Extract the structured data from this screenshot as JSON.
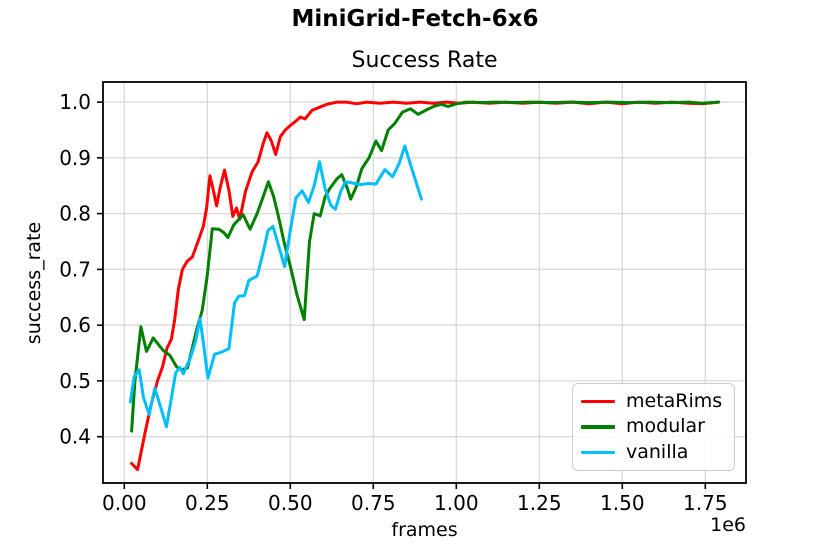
{
  "figure": {
    "suptitle": "MiniGrid-Fetch-6x6",
    "axes_title": "Success Rate"
  },
  "chart_data": {
    "type": "line",
    "title": "Success Rate",
    "suptitle": "MiniGrid-Fetch-6x6",
    "xlabel": "frames",
    "ylabel": "success_rate",
    "x_offset_label": "1e6",
    "x_units": "frames (1e6)",
    "grid": true,
    "legend_position": "lower right",
    "xlim": [
      -0.0641,
      1.8726
    ],
    "ylim": [
      0.317,
      1.036
    ],
    "xticks": {
      "values": [
        0,
        0.25,
        0.5,
        0.75,
        1.0,
        1.25,
        1.5,
        1.75
      ],
      "labels": [
        "0.00",
        "0.25",
        "0.50",
        "0.75",
        "1.00",
        "1.25",
        "1.50",
        "1.75"
      ]
    },
    "yticks": {
      "values": [
        0.4,
        0.5,
        0.6,
        0.7,
        0.8,
        0.9,
        1.0
      ],
      "labels": [
        "0.4",
        "0.5",
        "0.6",
        "0.7",
        "0.8",
        "0.9",
        "1.0"
      ]
    },
    "grid_color": "#d9d9d9",
    "spine_color": "#000000",
    "series": [
      {
        "name": "metaRims",
        "color": "#ff0000",
        "points": [
          [
            0.022,
            0.352
          ],
          [
            0.04,
            0.341
          ],
          [
            0.062,
            0.406
          ],
          [
            0.08,
            0.455
          ],
          [
            0.1,
            0.5
          ],
          [
            0.115,
            0.525
          ],
          [
            0.128,
            0.558
          ],
          [
            0.142,
            0.575
          ],
          [
            0.152,
            0.61
          ],
          [
            0.163,
            0.665
          ],
          [
            0.175,
            0.7
          ],
          [
            0.19,
            0.715
          ],
          [
            0.205,
            0.722
          ],
          [
            0.222,
            0.75
          ],
          [
            0.238,
            0.777
          ],
          [
            0.248,
            0.81
          ],
          [
            0.258,
            0.868
          ],
          [
            0.268,
            0.842
          ],
          [
            0.278,
            0.814
          ],
          [
            0.29,
            0.85
          ],
          [
            0.302,
            0.878
          ],
          [
            0.315,
            0.842
          ],
          [
            0.327,
            0.795
          ],
          [
            0.338,
            0.81
          ],
          [
            0.348,
            0.79
          ],
          [
            0.365,
            0.84
          ],
          [
            0.385,
            0.875
          ],
          [
            0.403,
            0.893
          ],
          [
            0.418,
            0.925
          ],
          [
            0.43,
            0.945
          ],
          [
            0.443,
            0.93
          ],
          [
            0.456,
            0.906
          ],
          [
            0.47,
            0.938
          ],
          [
            0.485,
            0.95
          ],
          [
            0.5,
            0.958
          ],
          [
            0.515,
            0.965
          ],
          [
            0.53,
            0.973
          ],
          [
            0.545,
            0.97
          ],
          [
            0.565,
            0.985
          ],
          [
            0.585,
            0.99
          ],
          [
            0.61,
            0.996
          ],
          [
            0.64,
            1.0
          ],
          [
            0.67,
            1.0
          ],
          [
            0.7,
            0.997
          ],
          [
            0.73,
            1.0
          ],
          [
            0.77,
            0.998
          ],
          [
            0.81,
            1.0
          ],
          [
            0.85,
            0.998
          ],
          [
            0.89,
            1.0
          ],
          [
            0.93,
            0.998
          ],
          [
            0.97,
            1.0
          ],
          [
            1.01,
            0.998
          ],
          [
            1.05,
            1.0
          ],
          [
            1.1,
            0.998
          ],
          [
            1.15,
            1.0
          ],
          [
            1.2,
            0.998
          ],
          [
            1.25,
            1.0
          ],
          [
            1.3,
            0.998
          ],
          [
            1.35,
            1.0
          ],
          [
            1.4,
            0.997
          ],
          [
            1.45,
            1.0
          ],
          [
            1.5,
            0.997
          ],
          [
            1.55,
            1.0
          ],
          [
            1.6,
            0.998
          ],
          [
            1.65,
            1.0
          ],
          [
            1.7,
            0.998
          ],
          [
            1.74,
            0.997
          ],
          [
            1.79,
            1.0
          ]
        ]
      },
      {
        "name": "modular",
        "color": "#008000",
        "points": [
          [
            0.022,
            0.41
          ],
          [
            0.032,
            0.5
          ],
          [
            0.05,
            0.597
          ],
          [
            0.067,
            0.553
          ],
          [
            0.087,
            0.577
          ],
          [
            0.117,
            0.555
          ],
          [
            0.137,
            0.546
          ],
          [
            0.158,
            0.525
          ],
          [
            0.173,
            0.52
          ],
          [
            0.19,
            0.523
          ],
          [
            0.218,
            0.592
          ],
          [
            0.235,
            0.627
          ],
          [
            0.25,
            0.69
          ],
          [
            0.265,
            0.773
          ],
          [
            0.285,
            0.772
          ],
          [
            0.3,
            0.766
          ],
          [
            0.312,
            0.757
          ],
          [
            0.33,
            0.78
          ],
          [
            0.358,
            0.798
          ],
          [
            0.379,
            0.772
          ],
          [
            0.4,
            0.8
          ],
          [
            0.415,
            0.825
          ],
          [
            0.434,
            0.857
          ],
          [
            0.45,
            0.83
          ],
          [
            0.464,
            0.796
          ],
          [
            0.484,
            0.742
          ],
          [
            0.5,
            0.706
          ],
          [
            0.52,
            0.655
          ],
          [
            0.542,
            0.61
          ],
          [
            0.558,
            0.75
          ],
          [
            0.572,
            0.8
          ],
          [
            0.59,
            0.796
          ],
          [
            0.605,
            0.83
          ],
          [
            0.62,
            0.846
          ],
          [
            0.64,
            0.862
          ],
          [
            0.655,
            0.87
          ],
          [
            0.672,
            0.845
          ],
          [
            0.682,
            0.826
          ],
          [
            0.7,
            0.85
          ],
          [
            0.715,
            0.88
          ],
          [
            0.737,
            0.9
          ],
          [
            0.758,
            0.93
          ],
          [
            0.775,
            0.913
          ],
          [
            0.795,
            0.95
          ],
          [
            0.815,
            0.962
          ],
          [
            0.838,
            0.982
          ],
          [
            0.862,
            0.988
          ],
          [
            0.885,
            0.978
          ],
          [
            0.91,
            0.986
          ],
          [
            0.935,
            0.993
          ],
          [
            0.955,
            0.996
          ],
          [
            0.975,
            0.992
          ],
          [
            1.0,
            0.997
          ],
          [
            1.03,
            1.0
          ],
          [
            1.07,
            0.999
          ],
          [
            1.12,
            1.0
          ],
          [
            1.17,
            0.999
          ],
          [
            1.22,
            1.0
          ],
          [
            1.28,
            0.999
          ],
          [
            1.34,
            1.0
          ],
          [
            1.4,
            0.999
          ],
          [
            1.46,
            1.0
          ],
          [
            1.52,
            0.999
          ],
          [
            1.58,
            1.0
          ],
          [
            1.64,
            0.999
          ],
          [
            1.7,
            1.0
          ],
          [
            1.74,
            0.998
          ],
          [
            1.79,
            1.0
          ]
        ]
      },
      {
        "name": "vanilla",
        "color": "#00bfff",
        "points": [
          [
            0.018,
            0.462
          ],
          [
            0.03,
            0.508
          ],
          [
            0.045,
            0.52
          ],
          [
            0.058,
            0.47
          ],
          [
            0.075,
            0.44
          ],
          [
            0.092,
            0.487
          ],
          [
            0.11,
            0.452
          ],
          [
            0.127,
            0.418
          ],
          [
            0.145,
            0.48
          ],
          [
            0.155,
            0.515
          ],
          [
            0.168,
            0.524
          ],
          [
            0.178,
            0.513
          ],
          [
            0.2,
            0.543
          ],
          [
            0.215,
            0.572
          ],
          [
            0.228,
            0.612
          ],
          [
            0.24,
            0.56
          ],
          [
            0.252,
            0.505
          ],
          [
            0.272,
            0.548
          ],
          [
            0.29,
            0.551
          ],
          [
            0.315,
            0.558
          ],
          [
            0.332,
            0.64
          ],
          [
            0.345,
            0.652
          ],
          [
            0.362,
            0.653
          ],
          [
            0.375,
            0.68
          ],
          [
            0.4,
            0.688
          ],
          [
            0.418,
            0.73
          ],
          [
            0.433,
            0.77
          ],
          [
            0.448,
            0.777
          ],
          [
            0.466,
            0.74
          ],
          [
            0.483,
            0.705
          ],
          [
            0.5,
            0.77
          ],
          [
            0.517,
            0.828
          ],
          [
            0.536,
            0.841
          ],
          [
            0.555,
            0.82
          ],
          [
            0.572,
            0.85
          ],
          [
            0.588,
            0.893
          ],
          [
            0.605,
            0.845
          ],
          [
            0.622,
            0.815
          ],
          [
            0.636,
            0.808
          ],
          [
            0.652,
            0.84
          ],
          [
            0.666,
            0.857
          ],
          [
            0.685,
            0.855
          ],
          [
            0.71,
            0.852
          ],
          [
            0.735,
            0.854
          ],
          [
            0.758,
            0.853
          ],
          [
            0.785,
            0.879
          ],
          [
            0.808,
            0.866
          ],
          [
            0.828,
            0.89
          ],
          [
            0.845,
            0.921
          ],
          [
            0.862,
            0.888
          ],
          [
            0.878,
            0.858
          ],
          [
            0.895,
            0.826
          ]
        ]
      }
    ]
  }
}
